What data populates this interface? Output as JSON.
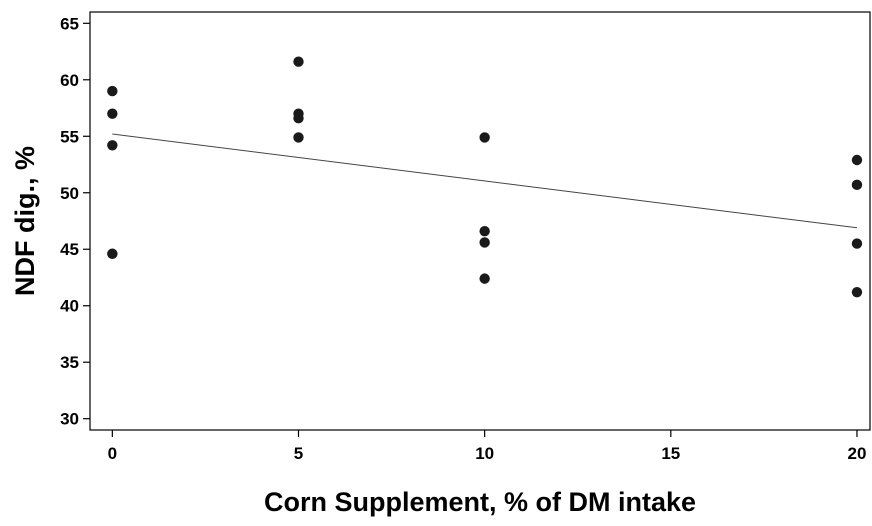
{
  "chart_data": {
    "type": "scatter",
    "title": "",
    "xlabel": "Corn Supplement, % of DM intake",
    "ylabel": "NDF dig., %",
    "xlim": [
      -0.6,
      20.35
    ],
    "ylim": [
      29,
      66
    ],
    "x_ticks": [
      0,
      5,
      10,
      15,
      20
    ],
    "y_ticks": [
      30,
      35,
      40,
      45,
      50,
      55,
      60,
      65
    ],
    "grid": false,
    "legend": "none",
    "series": [
      {
        "points": [
          [
            0,
            59.0
          ],
          [
            0,
            57.0
          ],
          [
            0,
            54.2
          ],
          [
            0,
            44.6
          ],
          [
            5,
            61.6
          ],
          [
            5,
            57.0
          ],
          [
            5,
            56.6
          ],
          [
            5,
            54.9
          ],
          [
            10,
            54.9
          ],
          [
            10,
            46.6
          ],
          [
            10,
            45.6
          ],
          [
            10,
            42.4
          ],
          [
            20,
            52.9
          ],
          [
            20,
            50.7
          ],
          [
            20,
            45.5
          ],
          [
            20,
            41.2
          ]
        ],
        "color": "#1a1a1a"
      }
    ],
    "trendline": {
      "x": [
        0,
        20
      ],
      "y": [
        55.2,
        46.9
      ],
      "color": "#444444"
    }
  }
}
